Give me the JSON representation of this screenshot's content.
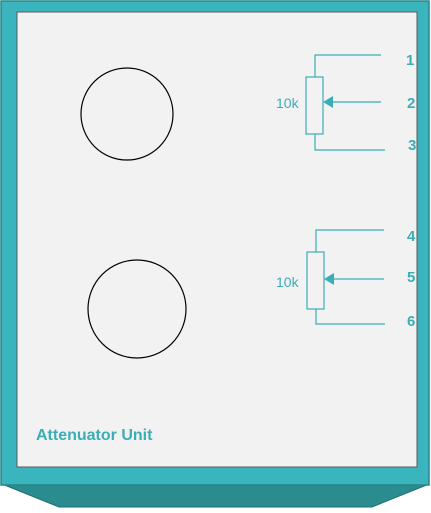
{
  "unit": {
    "title": "Attenuator Unit"
  },
  "colors": {
    "frame": "#3bb5bd",
    "base": "#2a8c8e",
    "panel": "#f2f2f2",
    "wire": "#3aaeb5",
    "text": "#3aaeb5",
    "knob_stroke": "#000000"
  },
  "knobs": [
    {
      "name": "upper-knob"
    },
    {
      "name": "lower-knob"
    }
  ],
  "potentiometers": [
    {
      "name": "upper",
      "value_label": "10k",
      "pins": [
        "1",
        "2",
        "3"
      ]
    },
    {
      "name": "lower",
      "value_label": "10k",
      "pins": [
        "4",
        "5",
        "6"
      ]
    }
  ]
}
